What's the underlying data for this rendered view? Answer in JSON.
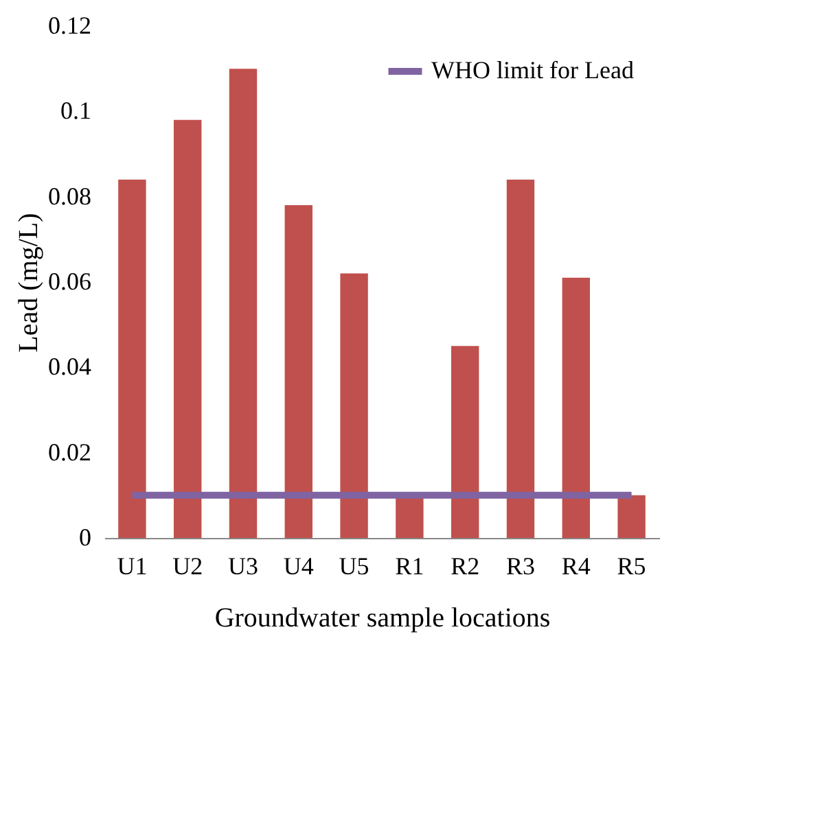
{
  "chart_data": {
    "type": "bar",
    "xlabel": "Groundwater sample locations",
    "ylabel": "Lead (mg/L)",
    "categories": [
      "U1",
      "U2",
      "U3",
      "U4",
      "U5",
      "R1",
      "R2",
      "R3",
      "R4",
      "R5"
    ],
    "series": [
      {
        "color": "#c0504d",
        "values": [
          0.084,
          0.098,
          0.11,
          0.078,
          0.062,
          0.01,
          0.045,
          0.084,
          0.061,
          0.01
        ]
      },
      {
        "type": "line",
        "name": "WHO limit for Lead",
        "color": "#8064a2",
        "values": [
          0.01,
          0.01,
          0.01,
          0.01,
          0.01,
          0.01,
          0.01,
          0.01,
          0.01,
          0.01
        ]
      }
    ],
    "ylim": [
      0,
      0.12
    ],
    "yticks": [
      0,
      0.02,
      0.04,
      0.06,
      0.08,
      0.1,
      0.12
    ],
    "grid": false,
    "legend": "top right"
  }
}
